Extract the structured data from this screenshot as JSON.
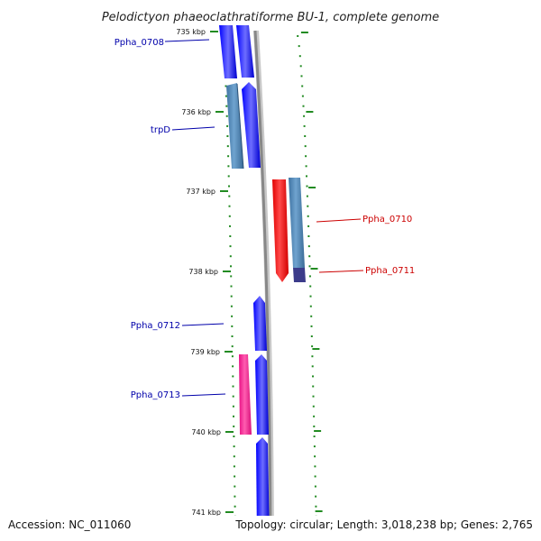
{
  "title": "Pelodictyon phaeoclathratiforme BU-1, complete genome",
  "footer": {
    "accession": "Accession: NC_011060",
    "topology": "Topology: circular; Length: 3,018,238 bp; Genes: 2,765"
  },
  "scale": {
    "labels": [
      "735 kbp",
      "736 kbp",
      "737 kbp",
      "738 kbp",
      "739 kbp",
      "740 kbp",
      "741 kbp"
    ]
  },
  "genes": [
    {
      "id": "g1",
      "name": "Ppha_0708",
      "color": "#0000ff",
      "lane": "left-outer",
      "strand": "+"
    },
    {
      "id": "g2",
      "name": "",
      "color": "#0000ff",
      "lane": "left-inner",
      "strand": "+"
    },
    {
      "id": "g3",
      "name": "trpD",
      "color": "#4682b4",
      "lane": "left-outer",
      "strand": "-"
    },
    {
      "id": "g4",
      "name": "",
      "color": "#0000ff",
      "lane": "left-inner",
      "strand": "+"
    },
    {
      "id": "g5",
      "name": "Ppha_0710",
      "color": "#ff0000",
      "lane": "right-inner",
      "strand": "-"
    },
    {
      "id": "g6",
      "name": "Ppha_0711",
      "color": "#4682b4",
      "lane": "right-outer",
      "strand": "-"
    },
    {
      "id": "g7",
      "name": "Ppha_0712",
      "color": "#0000ff",
      "lane": "left-inner",
      "strand": "+"
    },
    {
      "id": "g8",
      "name": "Ppha_0713",
      "color": "#ff1493",
      "lane": "left-outer",
      "strand": "-"
    },
    {
      "id": "g9",
      "name": "",
      "color": "#0000ff",
      "lane": "left-inner",
      "strand": "+"
    },
    {
      "id": "g10",
      "name": "",
      "color": "#0000ff",
      "lane": "left-inner",
      "strand": "+"
    }
  ],
  "colors": {
    "tick": "#228b22",
    "backbone": "#888888",
    "label_left": "#0000aa",
    "label_right": "#cc0000"
  }
}
